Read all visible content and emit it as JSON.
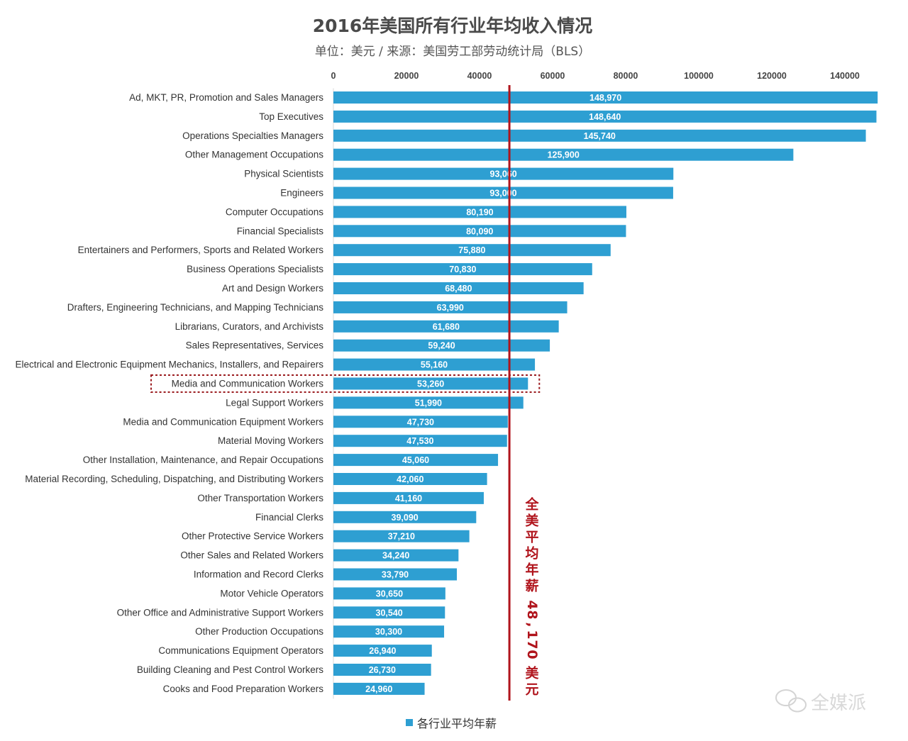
{
  "chart_data": {
    "type": "bar",
    "orientation": "horizontal",
    "title": "2016年美国所有行业年均收入情况",
    "subtitle": "单位：美元 / 来源：美国劳工部劳动统计局（BLS）",
    "xlim": [
      0,
      150000
    ],
    "x_ticks": [
      0,
      20000,
      40000,
      60000,
      80000,
      100000,
      120000,
      140000
    ],
    "x_tick_labels": [
      "0",
      "20000",
      "40000",
      "60000",
      "80000",
      "100000",
      "120000",
      "140000"
    ],
    "x_axis_position": "top",
    "grid": false,
    "legend_position": "bottom",
    "bar_color": "#2e9fd2",
    "average_line_color": "#b0141c",
    "categories": [
      "Ad, MKT, PR, Promotion and Sales Managers",
      "Top Executives",
      "Operations Specialties Managers",
      "Other Management Occupations",
      "Physical Scientists",
      "Engineers",
      "Computer Occupations",
      "Financial Specialists",
      "Entertainers and Performers, Sports and Related Workers",
      "Business Operations Specialists",
      "Art and Design Workers",
      "Drafters, Engineering Technicians, and Mapping Technicians",
      "Librarians, Curators, and Archivists",
      "Sales Representatives, Services",
      "Electrical and Electronic Equipment Mechanics, Installers, and Repairers",
      "Media and Communication Workers",
      "Legal Support Workers",
      "Media and Communication Equipment Workers",
      "Material Moving Workers",
      "Other Installation, Maintenance, and Repair Occupations",
      "Material Recording, Scheduling, Dispatching, and Distributing Workers",
      "Other Transportation Workers",
      "Financial Clerks",
      "Other Protective Service Workers",
      "Other Sales and Related Workers",
      "Information and Record Clerks",
      "Motor Vehicle Operators",
      "Other Office and Administrative Support Workers",
      "Other Production Occupations",
      "Communications Equipment Operators",
      "Building Cleaning and Pest Control Workers",
      "Cooks and Food Preparation Workers"
    ],
    "series": [
      {
        "name": "各行业平均年薪",
        "values": [
          148970,
          148640,
          145740,
          125900,
          93060,
          93000,
          80190,
          80090,
          75880,
          70830,
          68480,
          63990,
          61680,
          59240,
          55160,
          53260,
          51990,
          47730,
          47530,
          45060,
          42060,
          41160,
          39090,
          37210,
          34240,
          33790,
          30650,
          30540,
          30300,
          26940,
          26730,
          24960
        ],
        "value_labels": [
          "148,970",
          "148,640",
          "145,740",
          "125,900",
          "93,060",
          "93,000",
          "80,190",
          "80,090",
          "75,880",
          "70,830",
          "68,480",
          "63,990",
          "61,680",
          "59,240",
          "55,160",
          "53,260",
          "51,990",
          "47,730",
          "47,530",
          "45,060",
          "42,060",
          "41,160",
          "39,090",
          "37,210",
          "34,240",
          "33,790",
          "30,650",
          "30,540",
          "30,300",
          "26,940",
          "26,730",
          "24,960"
        ]
      }
    ],
    "highlighted_category": "Media and Communication Workers",
    "average": {
      "value": 48170,
      "label": "全美平均年薪 48,170 美元"
    }
  },
  "watermark": {
    "text": "全媒派",
    "icon": "wechat-icon"
  }
}
